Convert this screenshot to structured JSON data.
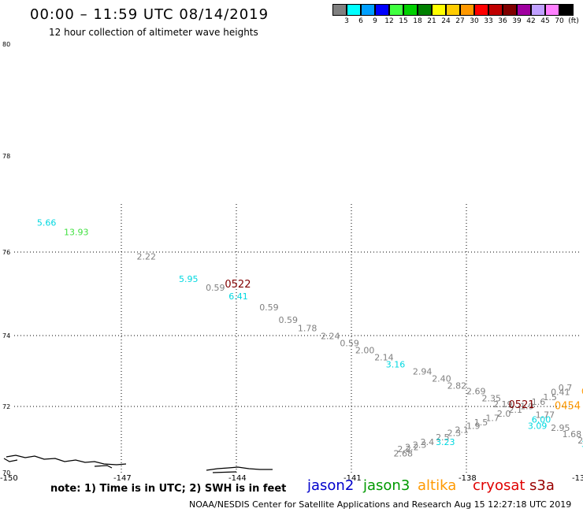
{
  "header": {
    "title": "00:00 – 11:59 UTC 08/14/2019",
    "subtitle": "12 hour collection of altimeter wave heights"
  },
  "legend": {
    "unit": "(ft)",
    "bins": [
      {
        "label": "3",
        "color": "#808080"
      },
      {
        "label": "6",
        "color": "#00ffff"
      },
      {
        "label": "9",
        "color": "#00a0ff"
      },
      {
        "label": "12",
        "color": "#0000ff"
      },
      {
        "label": "15",
        "color": "#40ff40"
      },
      {
        "label": "18",
        "color": "#00d000"
      },
      {
        "label": "21",
        "color": "#008000"
      },
      {
        "label": "24",
        "color": "#ffff00"
      },
      {
        "label": "27",
        "color": "#ffcc00"
      },
      {
        "label": "30",
        "color": "#ff9900"
      },
      {
        "label": "33",
        "color": "#ff0000"
      },
      {
        "label": "36",
        "color": "#c00000"
      },
      {
        "label": "39",
        "color": "#800000"
      },
      {
        "label": "42",
        "color": "#a000a0"
      },
      {
        "label": "45",
        "color": "#c0a0ff"
      },
      {
        "label": "70",
        "color": "#ff80ff"
      },
      {
        "label": "",
        "color": "#000000"
      }
    ]
  },
  "axes": {
    "lon_ticks": [
      "-150",
      "-147",
      "-144",
      "-141",
      "-138",
      "-13"
    ],
    "lat_ticks": [
      "80",
      "78",
      "76",
      "74",
      "72",
      "70"
    ]
  },
  "chart_data": {
    "type": "scatter",
    "x_unit": "degrees longitude",
    "y_unit": "degrees latitude",
    "xlim": [
      -150,
      -135
    ],
    "ylim": [
      70,
      80
    ],
    "series": [
      {
        "name": "gray",
        "color": "#808080",
        "points": [
          {
            "lon": -146.6,
            "lat": 75.82,
            "v": "2.22"
          },
          {
            "lon": -144.8,
            "lat": 75.08,
            "v": "0.59"
          },
          {
            "lon": -143.4,
            "lat": 74.6,
            "v": "0.59"
          },
          {
            "lon": -142.9,
            "lat": 74.3,
            "v": "0.59"
          },
          {
            "lon": -142.4,
            "lat": 74.1,
            "v": "1.78"
          },
          {
            "lon": -141.8,
            "lat": 73.9,
            "v": "2.24"
          },
          {
            "lon": -141.3,
            "lat": 73.7,
            "v": "0.59"
          },
          {
            "lon": -140.9,
            "lat": 73.5,
            "v": "2.00"
          },
          {
            "lon": -140.4,
            "lat": 73.3,
            "v": "2.14"
          },
          {
            "lon": -139.4,
            "lat": 72.9,
            "v": "2.94"
          },
          {
            "lon": -138.9,
            "lat": 72.7,
            "v": "2.40"
          },
          {
            "lon": -138.5,
            "lat": 72.5,
            "v": "2.82"
          },
          {
            "lon": -138.0,
            "lat": 72.35,
            "v": "2.69"
          },
          {
            "lon": -137.6,
            "lat": 72.15,
            "v": "2.35"
          },
          {
            "lon": -137.3,
            "lat": 71.98,
            "v": "2.19"
          },
          {
            "lon": -136.2,
            "lat": 71.65,
            "v": "1.77"
          },
          {
            "lon": -135.8,
            "lat": 71.25,
            "v": "2.95"
          },
          {
            "lon": -135.5,
            "lat": 71.05,
            "v": "1.68"
          },
          {
            "lon": -135.1,
            "lat": 70.85,
            "v": "2"
          },
          {
            "lon": -139.9,
            "lat": 70.45,
            "v": "2.68"
          },
          {
            "lon": -139.8,
            "lat": 70.58,
            "v": "2.2"
          },
          {
            "lon": -139.6,
            "lat": 70.65,
            "v": "2.2"
          },
          {
            "lon": -139.4,
            "lat": 70.72,
            "v": "2.3"
          },
          {
            "lon": -139.2,
            "lat": 70.8,
            "v": "2.4"
          },
          {
            "lon": -138.8,
            "lat": 70.95,
            "v": "2.5"
          },
          {
            "lon": -138.5,
            "lat": 71.08,
            "v": "2.3"
          },
          {
            "lon": -138.3,
            "lat": 71.18,
            "v": "2.1"
          },
          {
            "lon": -138.0,
            "lat": 71.3,
            "v": "1.9"
          },
          {
            "lon": -137.8,
            "lat": 71.42,
            "v": "1.5"
          },
          {
            "lon": -137.5,
            "lat": 71.55,
            "v": "1.7"
          },
          {
            "lon": -137.2,
            "lat": 71.68,
            "v": "2.0"
          },
          {
            "lon": -136.9,
            "lat": 71.8,
            "v": "2.1"
          },
          {
            "lon": -136.6,
            "lat": 71.92,
            "v": "1.9"
          },
          {
            "lon": -136.3,
            "lat": 72.05,
            "v": "1.6"
          },
          {
            "lon": -136.0,
            "lat": 72.18,
            "v": "1.5"
          },
          {
            "lon": -135.8,
            "lat": 72.32,
            "v": "0.41"
          },
          {
            "lon": -135.6,
            "lat": 72.45,
            "v": "0.7"
          }
        ]
      },
      {
        "name": "cyan",
        "color": "#00d8e0",
        "points": [
          {
            "lon": -149.2,
            "lat": 76.55,
            "v": "5.66"
          },
          {
            "lon": -145.5,
            "lat": 75.28,
            "v": "5.95"
          },
          {
            "lon": -144.2,
            "lat": 74.87,
            "v": "6.41"
          },
          {
            "lon": -140.1,
            "lat": 73.1,
            "v": "3.16"
          },
          {
            "lon": -136.3,
            "lat": 71.5,
            "v": "6.00"
          },
          {
            "lon": -136.4,
            "lat": 71.3,
            "v": "3.09"
          },
          {
            "lon": -135.0,
            "lat": 70.75,
            "v": "3.04"
          },
          {
            "lon": -138.8,
            "lat": 70.8,
            "v": "3.23"
          }
        ]
      },
      {
        "name": "green",
        "color": "#40e040",
        "points": [
          {
            "lon": -148.5,
            "lat": 76.35,
            "v": "13.93"
          }
        ]
      },
      {
        "name": "dark red",
        "color": "#800000",
        "points": [
          {
            "lon": -144.3,
            "lat": 75.15,
            "v": "0522"
          },
          {
            "lon": -136.9,
            "lat": 71.95,
            "v": "0521"
          }
        ]
      },
      {
        "name": "orange",
        "color": "#ff9900",
        "points": [
          {
            "lon": -135.7,
            "lat": 71.92,
            "v": "0454"
          },
          {
            "lon": -135.0,
            "lat": 72.35,
            "v": "0"
          }
        ]
      }
    ]
  },
  "satellites": [
    {
      "name": "jason2",
      "color": "#0000cc"
    },
    {
      "name": "jason3",
      "color": "#009900"
    },
    {
      "name": "altika",
      "color": "#ff9900"
    },
    {
      "name": "cryosat",
      "color": "#e00000"
    },
    {
      "name": "s3a",
      "color": "#990000"
    }
  ],
  "note": "note: 1) Time is in UTC; 2) SWH is in feet",
  "footer": "NOAA/NESDIS Center for Satellite Applications and Research    Aug 15 12:27:18 UTC 2019"
}
